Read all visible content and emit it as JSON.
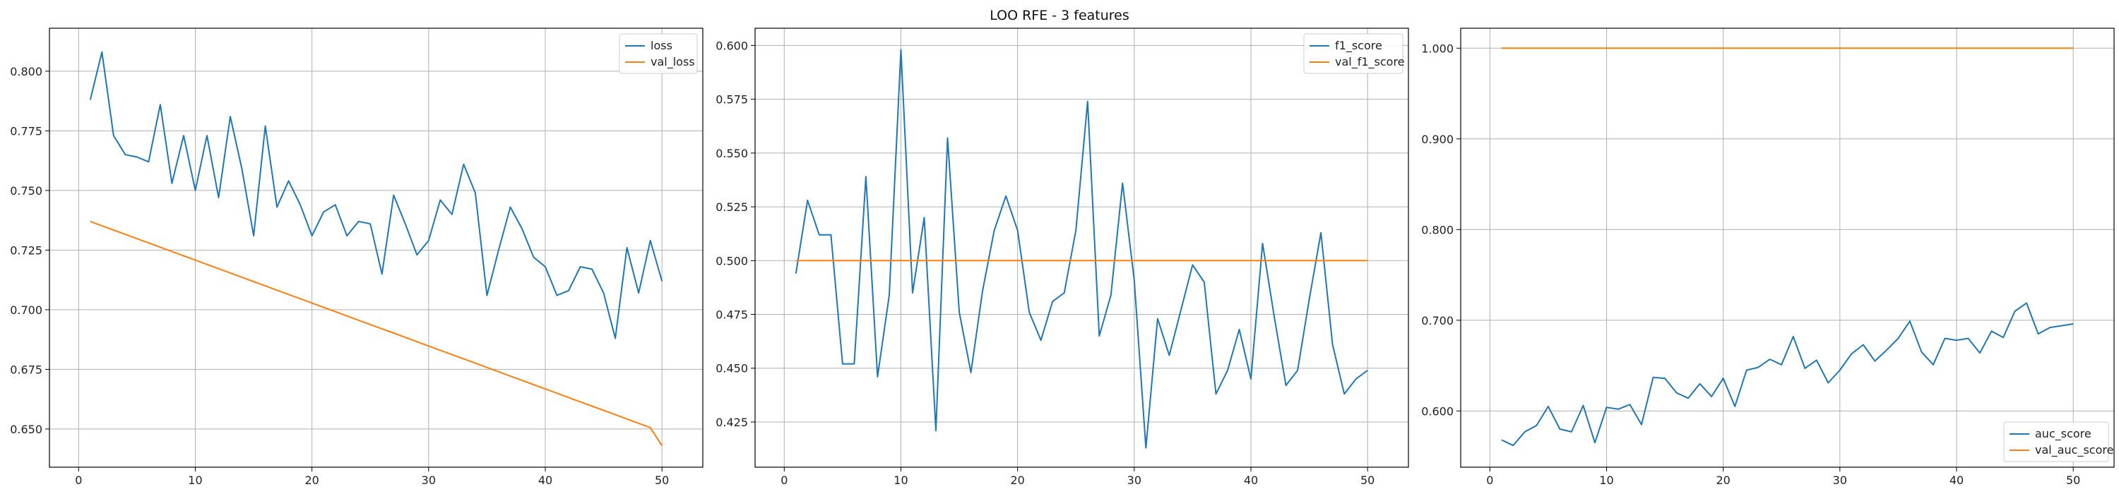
{
  "suptitle": "LOO RFE - 3 features",
  "colors": {
    "series1": "#1f77b4",
    "series2": "#ff7f0e",
    "grid": "#b0b0b0",
    "axis": "#000000"
  },
  "chart_data": [
    {
      "type": "line",
      "grid": true,
      "legend_position": "top-right",
      "xlim": [
        -2.5,
        53.5
      ],
      "ylim": [
        0.634,
        0.818
      ],
      "x_ticks": [
        0,
        10,
        20,
        30,
        40,
        50
      ],
      "y_ticks": [
        0.65,
        0.675,
        0.7,
        0.725,
        0.75,
        0.775,
        0.8
      ],
      "series": [
        {
          "name": "loss",
          "color": "#1f77b4",
          "values": [
            0.788,
            0.808,
            0.773,
            0.765,
            0.764,
            0.762,
            0.786,
            0.753,
            0.773,
            0.75,
            0.773,
            0.747,
            0.781,
            0.759,
            0.731,
            0.777,
            0.743,
            0.754,
            0.744,
            0.731,
            0.741,
            0.744,
            0.731,
            0.737,
            0.736,
            0.715,
            0.748,
            0.736,
            0.723,
            0.729,
            0.746,
            0.74,
            0.761,
            0.749,
            0.706,
            0.725,
            0.743,
            0.734,
            0.722,
            0.718,
            0.706,
            0.708,
            0.718,
            0.717,
            0.707,
            0.688,
            0.726,
            0.707,
            0.729,
            0.712
          ]
        },
        {
          "name": "val_loss",
          "color": "#ff7f0e",
          "values": [
            0.737,
            0.7352,
            0.7334,
            0.7316,
            0.7298,
            0.728,
            0.7262,
            0.7244,
            0.7226,
            0.7208,
            0.719,
            0.7172,
            0.7154,
            0.7136,
            0.7118,
            0.71,
            0.7082,
            0.7064,
            0.7046,
            0.7028,
            0.701,
            0.6992,
            0.6974,
            0.6956,
            0.6938,
            0.692,
            0.6902,
            0.6884,
            0.6866,
            0.6848,
            0.683,
            0.6812,
            0.6794,
            0.6776,
            0.6758,
            0.674,
            0.6722,
            0.6704,
            0.6686,
            0.6668,
            0.665,
            0.6632,
            0.6614,
            0.6596,
            0.6578,
            0.656,
            0.6542,
            0.6524,
            0.6506,
            0.643
          ]
        }
      ]
    },
    {
      "type": "line",
      "grid": true,
      "legend_position": "top-right",
      "xlim": [
        -2.5,
        53.5
      ],
      "ylim": [
        0.404,
        0.608
      ],
      "x_ticks": [
        0,
        10,
        20,
        30,
        40,
        50
      ],
      "y_ticks": [
        0.425,
        0.45,
        0.475,
        0.5,
        0.525,
        0.55,
        0.575,
        0.6
      ],
      "series": [
        {
          "name": "f1_score",
          "color": "#1f77b4",
          "values": [
            0.494,
            0.528,
            0.512,
            0.512,
            0.452,
            0.452,
            0.539,
            0.446,
            0.484,
            0.598,
            0.485,
            0.52,
            0.421,
            0.557,
            0.476,
            0.448,
            0.486,
            0.514,
            0.53,
            0.514,
            0.476,
            0.463,
            0.481,
            0.485,
            0.514,
            0.574,
            0.465,
            0.484,
            0.536,
            0.491,
            0.413,
            0.473,
            0.456,
            0.477,
            0.498,
            0.49,
            0.438,
            0.449,
            0.468,
            0.445,
            0.508,
            0.474,
            0.442,
            0.449,
            0.482,
            0.513,
            0.461,
            0.438,
            0.445,
            0.449
          ]
        },
        {
          "name": "val_f1_score",
          "color": "#ff7f0e",
          "values": [
            0.5,
            0.5,
            0.5,
            0.5,
            0.5,
            0.5,
            0.5,
            0.5,
            0.5,
            0.5,
            0.5,
            0.5,
            0.5,
            0.5,
            0.5,
            0.5,
            0.5,
            0.5,
            0.5,
            0.5,
            0.5,
            0.5,
            0.5,
            0.5,
            0.5,
            0.5,
            0.5,
            0.5,
            0.5,
            0.5,
            0.5,
            0.5,
            0.5,
            0.5,
            0.5,
            0.5,
            0.5,
            0.5,
            0.5,
            0.5,
            0.5,
            0.5,
            0.5,
            0.5,
            0.5,
            0.5,
            0.5,
            0.5,
            0.5,
            0.5
          ]
        }
      ]
    },
    {
      "type": "line",
      "grid": true,
      "legend_position": "bottom-right",
      "xlim": [
        -2.5,
        53.5
      ],
      "ylim": [
        0.538,
        1.022
      ],
      "x_ticks": [
        0,
        10,
        20,
        30,
        40,
        50
      ],
      "y_ticks": [
        0.6,
        0.7,
        0.8,
        0.9,
        1.0
      ],
      "series": [
        {
          "name": "auc_score",
          "color": "#1f77b4",
          "values": [
            0.568,
            0.562,
            0.577,
            0.584,
            0.605,
            0.58,
            0.577,
            0.606,
            0.565,
            0.604,
            0.602,
            0.607,
            0.585,
            0.637,
            0.636,
            0.62,
            0.614,
            0.63,
            0.616,
            0.636,
            0.605,
            0.645,
            0.648,
            0.657,
            0.651,
            0.682,
            0.647,
            0.656,
            0.631,
            0.645,
            0.663,
            0.673,
            0.655,
            0.667,
            0.68,
            0.699,
            0.665,
            0.651,
            0.68,
            0.678,
            0.68,
            0.664,
            0.688,
            0.681,
            0.71,
            0.719,
            0.685,
            0.692,
            0.694,
            0.696
          ]
        },
        {
          "name": "val_auc_score",
          "color": "#ff7f0e",
          "values": [
            1.0,
            1.0,
            1.0,
            1.0,
            1.0,
            1.0,
            1.0,
            1.0,
            1.0,
            1.0,
            1.0,
            1.0,
            1.0,
            1.0,
            1.0,
            1.0,
            1.0,
            1.0,
            1.0,
            1.0,
            1.0,
            1.0,
            1.0,
            1.0,
            1.0,
            1.0,
            1.0,
            1.0,
            1.0,
            1.0,
            1.0,
            1.0,
            1.0,
            1.0,
            1.0,
            1.0,
            1.0,
            1.0,
            1.0,
            1.0,
            1.0,
            1.0,
            1.0,
            1.0,
            1.0,
            1.0,
            1.0,
            1.0,
            1.0,
            1.0
          ]
        }
      ]
    }
  ]
}
